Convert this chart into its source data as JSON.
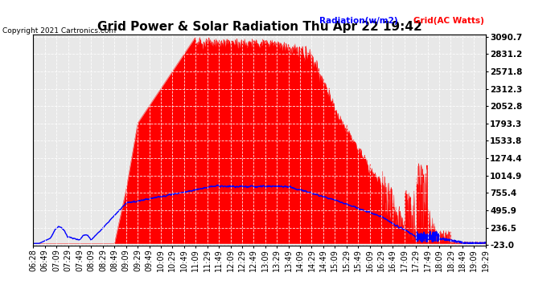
{
  "title": "Grid Power & Solar Radiation Thu Apr 22 19:42",
  "copyright": "Copyright 2021 Cartronics.com",
  "legend_radiation": "Radiation(w/m2)",
  "legend_grid": "Grid(AC Watts)",
  "yticks": [
    3090.7,
    2831.2,
    2571.8,
    2312.3,
    2052.8,
    1793.3,
    1533.8,
    1274.4,
    1014.9,
    755.4,
    495.9,
    236.5,
    -23.0
  ],
  "ymin": -23.0,
  "ymax": 3090.7,
  "grid_color": "#aaaaaa",
  "background_color": "#ffffff",
  "plot_bg_color": "#e8e8e8",
  "radiation_color": "#0000ff",
  "grid_ac_color": "#ff0000",
  "title_fontsize": 11,
  "tick_fontsize": 7.5,
  "xtick_labels": [
    "06:28",
    "06:49",
    "07:09",
    "07:29",
    "07:49",
    "08:09",
    "08:29",
    "08:49",
    "09:09",
    "09:29",
    "09:49",
    "10:09",
    "10:29",
    "10:49",
    "11:09",
    "11:29",
    "11:49",
    "12:09",
    "12:29",
    "12:49",
    "13:09",
    "13:29",
    "13:49",
    "14:09",
    "14:29",
    "14:49",
    "15:09",
    "15:29",
    "15:49",
    "16:09",
    "16:29",
    "16:49",
    "17:09",
    "17:29",
    "17:49",
    "18:09",
    "18:29",
    "18:49",
    "19:09",
    "19:29"
  ]
}
